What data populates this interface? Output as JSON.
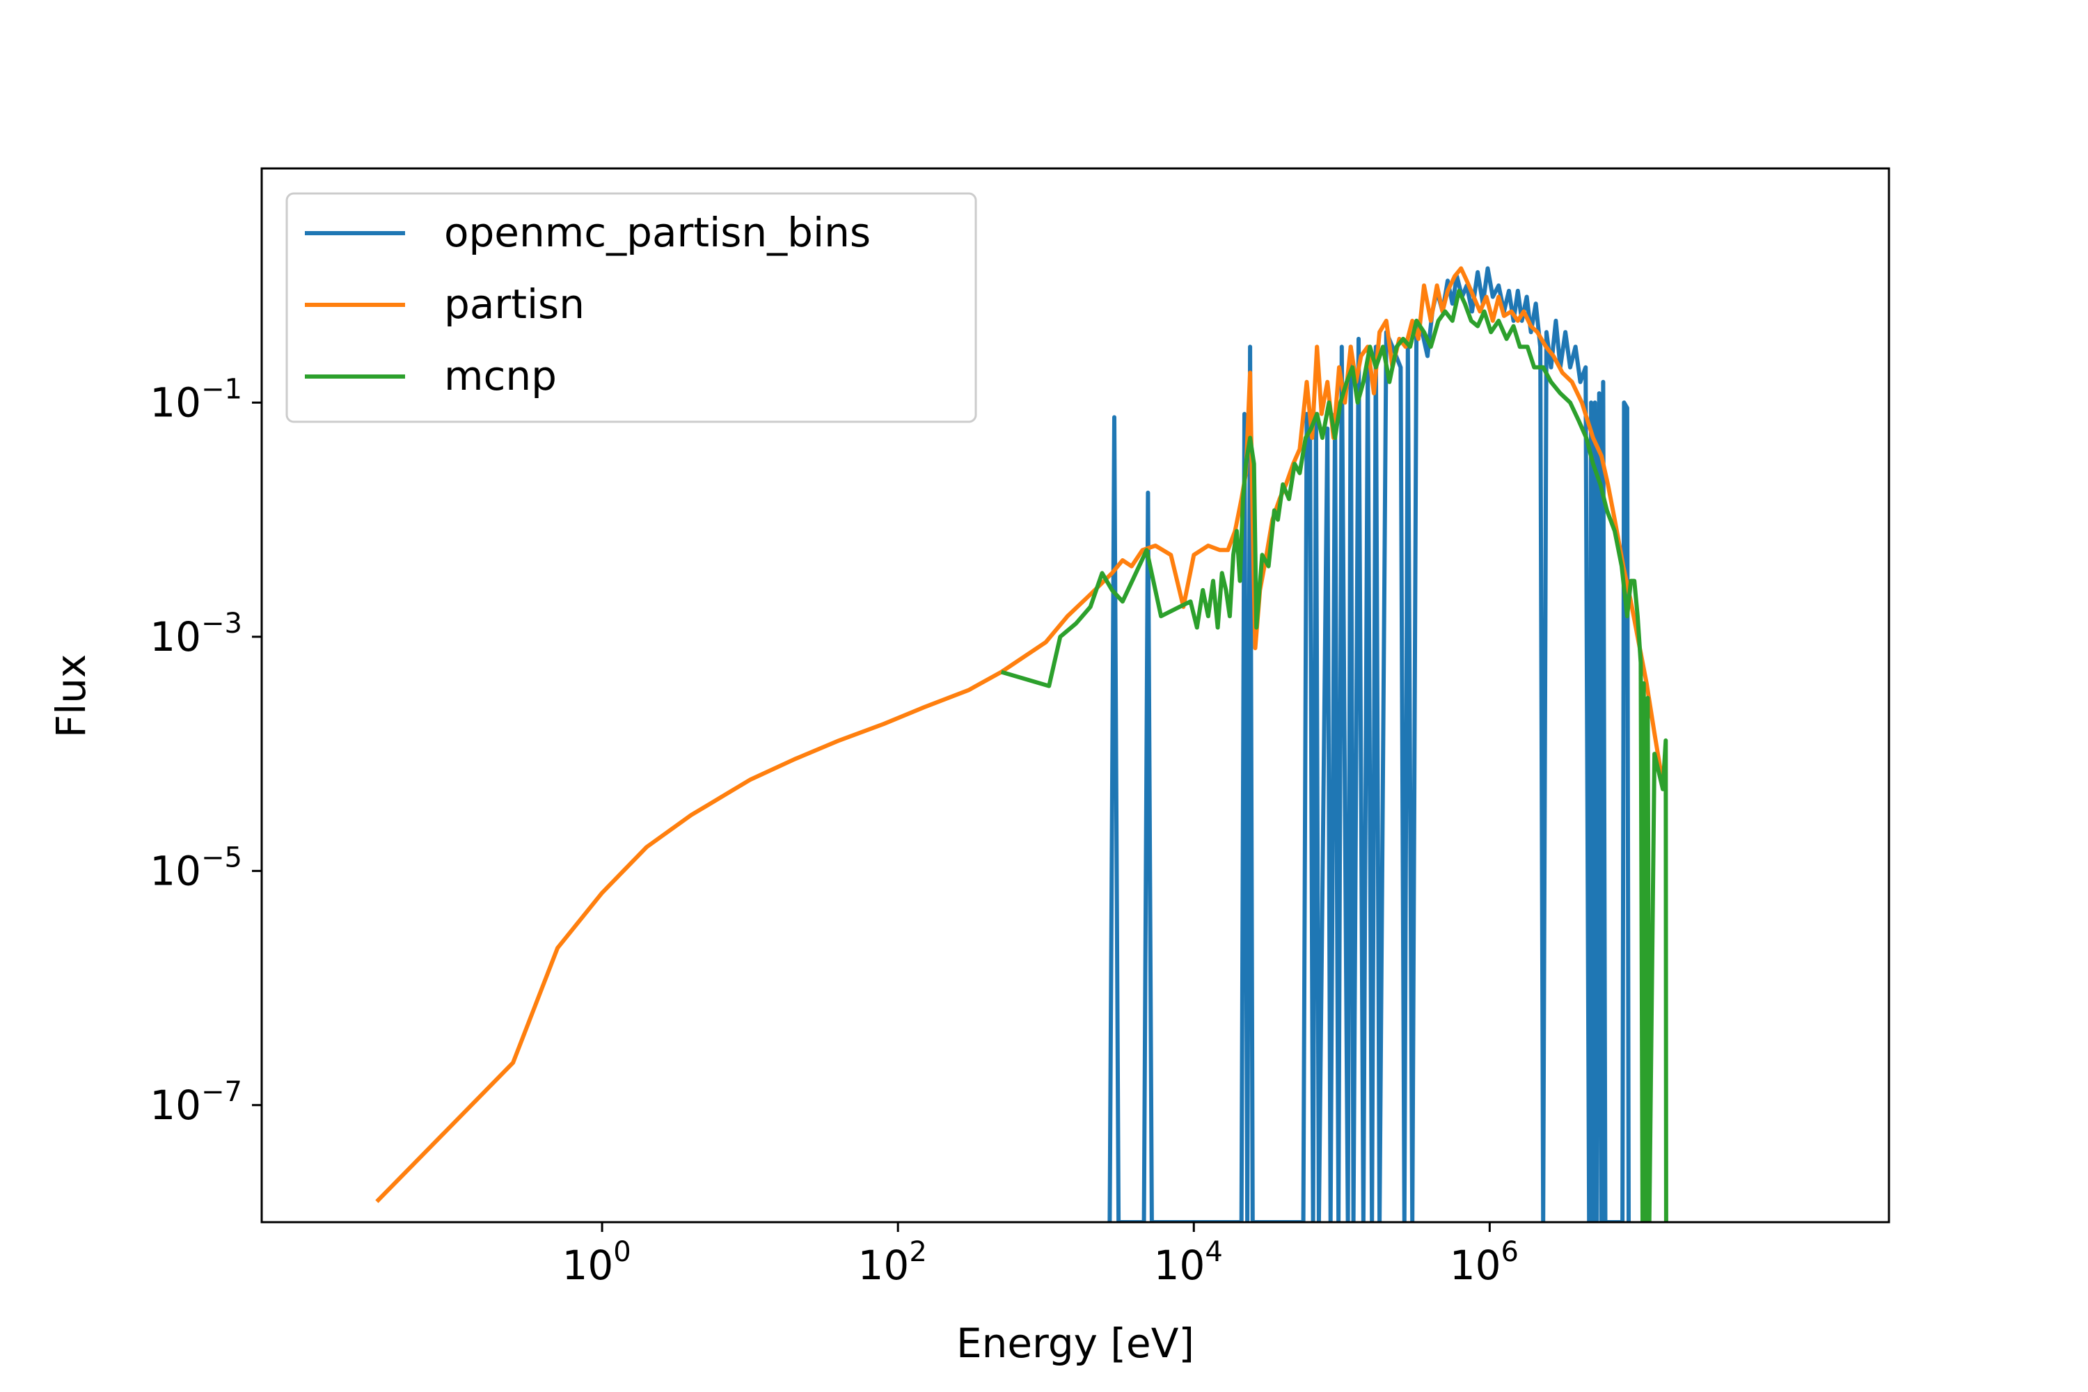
{
  "chart_data": {
    "type": "line",
    "title": "",
    "xlabel": "Energy [eV]",
    "ylabel": "Flux",
    "xscale": "log",
    "yscale": "log",
    "xlim": [
      0.005,
      500000000
    ],
    "ylim": [
      1e-08,
      10
    ],
    "xticks": [
      {
        "value": 1,
        "label": "10",
        "exp": "0"
      },
      {
        "value": 100,
        "label": "10",
        "exp": "2"
      },
      {
        "value": 10000,
        "label": "10",
        "exp": "4"
      },
      {
        "value": 1000000,
        "label": "10",
        "exp": "6"
      }
    ],
    "yticks": [
      {
        "value": 1e-07,
        "label": "10",
        "exp": "−7"
      },
      {
        "value": 1e-05,
        "label": "10",
        "exp": "−5"
      },
      {
        "value": 0.001,
        "label": "10",
        "exp": "−3"
      },
      {
        "value": 0.1,
        "label": "10",
        "exp": "−1"
      }
    ],
    "grid": false,
    "legend_position": "top-left",
    "series": [
      {
        "name": "openmc_partisn_bins",
        "color": "#1f77b4",
        "points": [
          [
            2700,
            1e-08
          ],
          [
            2900,
            0.075
          ],
          [
            3100,
            1e-08
          ],
          [
            4600,
            1e-08
          ],
          [
            4900,
            0.017
          ],
          [
            5200,
            1e-08
          ],
          [
            21000,
            1e-08
          ],
          [
            22000,
            0.08
          ],
          [
            23000,
            1e-08
          ],
          [
            24000,
            0.3
          ],
          [
            25000,
            1e-08
          ],
          [
            55000,
            1e-08
          ],
          [
            58000,
            0.08
          ],
          [
            61000,
            0.06
          ],
          [
            64000,
            1e-08
          ],
          [
            67000,
            0.08
          ],
          [
            70000,
            1e-08
          ],
          [
            80000,
            0.06
          ],
          [
            84000,
            1e-08
          ],
          [
            90000,
            0.08
          ],
          [
            95000,
            1e-08
          ],
          [
            100000,
            0.3
          ],
          [
            110000,
            1e-08
          ],
          [
            115000,
            0.3
          ],
          [
            120000,
            1e-08
          ],
          [
            130000,
            0.35
          ],
          [
            140000,
            1e-08
          ],
          [
            150000,
            0.2
          ],
          [
            160000,
            1e-08
          ],
          [
            170000,
            0.3
          ],
          [
            180000,
            1e-08
          ],
          [
            200000,
            0.4
          ],
          [
            220000,
            0.3
          ],
          [
            250000,
            0.2
          ],
          [
            265000,
            1e-08
          ],
          [
            280000,
            0.3
          ],
          [
            300000,
            1e-08
          ],
          [
            320000,
            0.5
          ],
          [
            350000,
            0.4
          ],
          [
            380000,
            0.25
          ],
          [
            410000,
            0.6
          ],
          [
            440000,
            0.9
          ],
          [
            480000,
            0.6
          ],
          [
            520000,
            1.1
          ],
          [
            560000,
            0.7
          ],
          [
            600000,
            1.2
          ],
          [
            650000,
            0.8
          ],
          [
            700000,
            1.0
          ],
          [
            760000,
            0.6
          ],
          [
            830000,
            1.3
          ],
          [
            900000,
            0.7
          ],
          [
            970000,
            1.4
          ],
          [
            1050000,
            0.8
          ],
          [
            1150000,
            1.0
          ],
          [
            1250000,
            0.6
          ],
          [
            1350000,
            0.9
          ],
          [
            1450000,
            0.5
          ],
          [
            1550000,
            0.9
          ],
          [
            1650000,
            0.5
          ],
          [
            1780000,
            0.8
          ],
          [
            1900000,
            0.4
          ],
          [
            2050000,
            0.7
          ],
          [
            2200000,
            0.3
          ],
          [
            2300000,
            1e-08
          ],
          [
            2420000,
            0.4
          ],
          [
            2600000,
            0.2
          ],
          [
            2800000,
            0.5
          ],
          [
            3000000,
            0.2
          ],
          [
            3250000,
            0.4
          ],
          [
            3500000,
            0.2
          ],
          [
            3800000,
            0.3
          ],
          [
            4100000,
            0.15
          ],
          [
            4450000,
            0.2
          ],
          [
            4700000,
            1e-08
          ],
          [
            4850000,
            0.1
          ],
          [
            5000000,
            1e-08
          ],
          [
            5150000,
            0.1
          ],
          [
            5300000,
            1e-08
          ],
          [
            5500000,
            0.12
          ],
          [
            5700000,
            1e-08
          ],
          [
            5850000,
            0.15
          ],
          [
            6050000,
            1e-08
          ],
          [
            7900000,
            1e-08
          ],
          [
            8100000,
            0.1
          ],
          [
            8500000,
            0.09
          ],
          [
            8700000,
            1e-08
          ]
        ]
      },
      {
        "name": "partisn",
        "color": "#ff7f0e",
        "points": [
          [
            0.03,
            1.5e-08
          ],
          [
            0.25,
            2.3e-07
          ],
          [
            0.5,
            2.2e-06
          ],
          [
            1.0,
            6.5e-06
          ],
          [
            2.0,
            1.6e-05
          ],
          [
            4.0,
            3e-05
          ],
          [
            10,
            6e-05
          ],
          [
            20,
            9e-05
          ],
          [
            40,
            0.00013
          ],
          [
            80,
            0.00018
          ],
          [
            150,
            0.00025
          ],
          [
            300,
            0.00035
          ],
          [
            500,
            0.0005
          ],
          [
            1000,
            0.0009
          ],
          [
            1400,
            0.0015
          ],
          [
            2000,
            0.0023
          ],
          [
            2800,
            0.0035
          ],
          [
            3300,
            0.0045
          ],
          [
            3800,
            0.004
          ],
          [
            4500,
            0.0055
          ],
          [
            5500,
            0.006
          ],
          [
            7000,
            0.005
          ],
          [
            8500,
            0.0018
          ],
          [
            10000,
            0.005
          ],
          [
            12500,
            0.006
          ],
          [
            15000,
            0.0055
          ],
          [
            17000,
            0.0055
          ],
          [
            19000,
            0.008
          ],
          [
            21000,
            0.015
          ],
          [
            22500,
            0.025
          ],
          [
            24000,
            0.18
          ],
          [
            25000,
            0.01
          ],
          [
            26000,
            0.0008
          ],
          [
            28000,
            0.0025
          ],
          [
            31000,
            0.005
          ],
          [
            34000,
            0.01
          ],
          [
            38000,
            0.015
          ],
          [
            42000,
            0.02
          ],
          [
            47000,
            0.03
          ],
          [
            52000,
            0.04
          ],
          [
            58000,
            0.15
          ],
          [
            63000,
            0.05
          ],
          [
            68000,
            0.3
          ],
          [
            73000,
            0.08
          ],
          [
            80000,
            0.15
          ],
          [
            88000,
            0.05
          ],
          [
            96000,
            0.2
          ],
          [
            105000,
            0.1
          ],
          [
            115000,
            0.3
          ],
          [
            125000,
            0.15
          ],
          [
            135000,
            0.25
          ],
          [
            150000,
            0.3
          ],
          [
            165000,
            0.12
          ],
          [
            180000,
            0.4
          ],
          [
            200000,
            0.5
          ],
          [
            220000,
            0.2
          ],
          [
            245000,
            0.35
          ],
          [
            270000,
            0.3
          ],
          [
            300000,
            0.5
          ],
          [
            330000,
            0.35
          ],
          [
            360000,
            1.0
          ],
          [
            400000,
            0.5
          ],
          [
            440000,
            1.0
          ],
          [
            480000,
            0.6
          ],
          [
            520000,
            0.9
          ],
          [
            580000,
            1.2
          ],
          [
            640000,
            1.4
          ],
          [
            700000,
            1.1
          ],
          [
            780000,
            0.8
          ],
          [
            860000,
            0.6
          ],
          [
            950000,
            0.8
          ],
          [
            1050000,
            0.5
          ],
          [
            1150000,
            0.8
          ],
          [
            1250000,
            0.55
          ],
          [
            1400000,
            0.6
          ],
          [
            1550000,
            0.5
          ],
          [
            1700000,
            0.6
          ],
          [
            1900000,
            0.45
          ],
          [
            2100000,
            0.4
          ],
          [
            2400000,
            0.3
          ],
          [
            2700000,
            0.25
          ],
          [
            3100000,
            0.18
          ],
          [
            3600000,
            0.15
          ],
          [
            4200000,
            0.1
          ],
          [
            5000000,
            0.05
          ],
          [
            5700000,
            0.035
          ],
          [
            6300000,
            0.02
          ],
          [
            7000000,
            0.01
          ],
          [
            8000000,
            0.004
          ],
          [
            9000000,
            0.002
          ],
          [
            10000000,
            0.001
          ],
          [
            11500000,
            0.0004
          ],
          [
            13000000,
            0.00015
          ],
          [
            15000000,
            5e-05
          ]
        ]
      },
      {
        "name": "mcnp",
        "color": "#2ca02c",
        "points": [
          [
            500,
            0.0005
          ],
          [
            1050,
            0.00038
          ],
          [
            1250,
            0.001
          ],
          [
            1600,
            0.0013
          ],
          [
            2000,
            0.0018
          ],
          [
            2400,
            0.0035
          ],
          [
            2800,
            0.0025
          ],
          [
            3300,
            0.002
          ],
          [
            4800,
            0.0055
          ],
          [
            6000,
            0.0015
          ],
          [
            8000,
            0.0018
          ],
          [
            9500,
            0.002
          ],
          [
            10500,
            0.0012
          ],
          [
            11500,
            0.0025
          ],
          [
            12500,
            0.0015
          ],
          [
            13500,
            0.003
          ],
          [
            14500,
            0.0012
          ],
          [
            15500,
            0.0035
          ],
          [
            16500,
            0.0025
          ],
          [
            17500,
            0.0015
          ],
          [
            18500,
            0.005
          ],
          [
            19500,
            0.008
          ],
          [
            20500,
            0.003
          ],
          [
            21500,
            0.015
          ],
          [
            22500,
            0.03
          ],
          [
            24000,
            0.05
          ],
          [
            25500,
            0.03
          ],
          [
            26500,
            0.0012
          ],
          [
            29000,
            0.005
          ],
          [
            32000,
            0.004
          ],
          [
            35000,
            0.012
          ],
          [
            37000,
            0.01
          ],
          [
            40000,
            0.02
          ],
          [
            44000,
            0.015
          ],
          [
            48000,
            0.03
          ],
          [
            52000,
            0.025
          ],
          [
            57000,
            0.05
          ],
          [
            62000,
            0.06
          ],
          [
            68000,
            0.08
          ],
          [
            74000,
            0.05
          ],
          [
            82000,
            0.1
          ],
          [
            90000,
            0.05
          ],
          [
            98000,
            0.1
          ],
          [
            108000,
            0.15
          ],
          [
            118000,
            0.2
          ],
          [
            128000,
            0.1
          ],
          [
            140000,
            0.15
          ],
          [
            155000,
            0.3
          ],
          [
            170000,
            0.2
          ],
          [
            190000,
            0.3
          ],
          [
            210000,
            0.15
          ],
          [
            235000,
            0.3
          ],
          [
            260000,
            0.35
          ],
          [
            290000,
            0.3
          ],
          [
            320000,
            0.5
          ],
          [
            360000,
            0.4
          ],
          [
            400000,
            0.3
          ],
          [
            450000,
            0.5
          ],
          [
            500000,
            0.6
          ],
          [
            560000,
            0.5
          ],
          [
            620000,
            0.9
          ],
          [
            680000,
            0.7
          ],
          [
            750000,
            0.5
          ],
          [
            830000,
            0.45
          ],
          [
            920000,
            0.6
          ],
          [
            1020000,
            0.4
          ],
          [
            1150000,
            0.5
          ],
          [
            1300000,
            0.35
          ],
          [
            1450000,
            0.45
          ],
          [
            1600000,
            0.3
          ],
          [
            1800000,
            0.3
          ],
          [
            2000000,
            0.2
          ],
          [
            2300000,
            0.2
          ],
          [
            2600000,
            0.15
          ],
          [
            3000000,
            0.12
          ],
          [
            3500000,
            0.1
          ],
          [
            4000000,
            0.07
          ],
          [
            4500000,
            0.05
          ],
          [
            5000000,
            0.03
          ],
          [
            5600000,
            0.02
          ],
          [
            6200000,
            0.012
          ],
          [
            7000000,
            0.008
          ],
          [
            7800000,
            0.004
          ],
          [
            8500000,
            0.0015
          ],
          [
            9000000,
            0.003
          ],
          [
            9500000,
            0.003
          ],
          [
            10000000,
            0.0015
          ],
          [
            10500000,
            0.0006
          ],
          [
            10800000,
            1e-08
          ],
          [
            11000000,
            0.0004
          ],
          [
            11300000,
            1e-08
          ],
          [
            11700000,
            0.0003
          ],
          [
            12000000,
            1e-08
          ],
          [
            13000000,
            0.0001
          ],
          [
            14800000,
            5e-05
          ],
          [
            15500000,
            0.00013
          ],
          [
            15600000,
            1e-08
          ]
        ]
      }
    ]
  }
}
